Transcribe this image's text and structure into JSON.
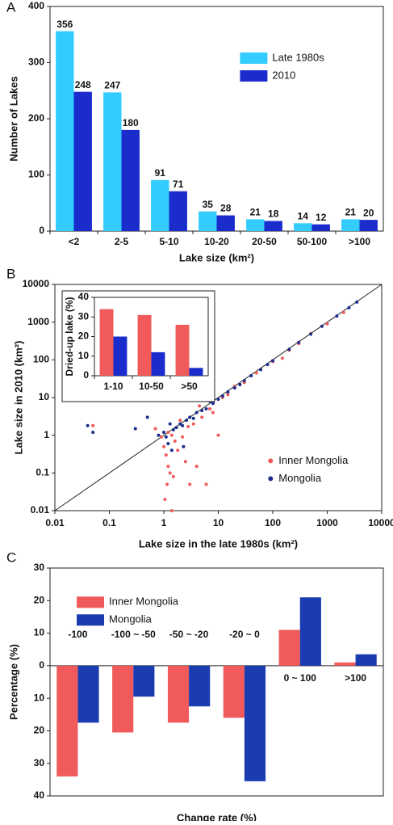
{
  "chart_data": [
    {
      "type": "bar",
      "panel": "A",
      "xlabel": "Lake size (km²)",
      "ylabel": "Number of Lakes",
      "categories": [
        "<2",
        "2-5",
        "5-10",
        "10-20",
        "20-50",
        "50-100",
        ">100"
      ],
      "series": [
        {
          "name": "Late 1980s",
          "color": "#33ccff",
          "values": [
            356,
            247,
            91,
            35,
            21,
            14,
            21
          ]
        },
        {
          "name": "2010",
          "color": "#1a2ccc",
          "values": [
            248,
            180,
            71,
            28,
            18,
            12,
            20
          ]
        }
      ],
      "ylim": [
        0,
        400
      ],
      "yticks": [
        0,
        100,
        200,
        300,
        400
      ],
      "data_labels": true,
      "legend": "upper right"
    },
    {
      "type": "scatter",
      "panel": "B",
      "xlabel": "Lake size in the late 1980s (km²)",
      "ylabel": "Lake size in 2010 (km²)",
      "xscale": "log",
      "yscale": "log",
      "xlim": [
        0.01,
        10000
      ],
      "ylim": [
        0.01,
        10000
      ],
      "xticks": [
        0.01,
        0.1,
        1,
        10,
        100,
        1000,
        10000
      ],
      "yticks": [
        0.01,
        0.1,
        1,
        10,
        100,
        1000,
        10000
      ],
      "legend": "lower right",
      "series": [
        {
          "name": "Inner Mongolia",
          "color": "#f05a5a",
          "x": [
            0.05,
            0.9,
            1.0,
            1.05,
            1.1,
            1.15,
            1.2,
            1.3,
            1.4,
            1.5,
            1.6,
            1.8,
            2,
            2.2,
            2.5,
            3,
            3.5,
            4,
            5,
            6,
            7,
            8,
            10,
            12,
            15,
            20,
            30,
            50,
            100,
            150,
            200,
            300,
            500,
            1000,
            2000,
            1.2,
            1.4,
            2.8,
            4.5,
            0.7
          ],
          "y": [
            1.8,
            0.9,
            0.5,
            0.02,
            0.3,
            0.05,
            0.15,
            0.1,
            1,
            0.08,
            0.7,
            0.4,
            2.5,
            0.9,
            0.2,
            0.05,
            2,
            0.15,
            3,
            0.05,
            5,
            4,
            1,
            10,
            12,
            20,
            25,
            45,
            90,
            110,
            180,
            270,
            500,
            900,
            1800,
            1.2,
            0.01,
            1.7,
            6,
            1.5
          ]
        },
        {
          "name": "Mongolia",
          "color": "#1a2c8c",
          "x": [
            0.04,
            0.05,
            0.3,
            0.5,
            0.8,
            1,
            1.1,
            1.2,
            1.3,
            1.5,
            1.7,
            2,
            2.3,
            2.6,
            3,
            3.5,
            4,
            5,
            6,
            7,
            8,
            10,
            12,
            15,
            20,
            25,
            30,
            40,
            60,
            80,
            100,
            200,
            300,
            500,
            800,
            1500,
            2500,
            3500,
            1.4,
            2.2
          ],
          "y": [
            1.8,
            1.2,
            1.5,
            3,
            1,
            1.2,
            0.9,
            0.6,
            2,
            1.4,
            1.6,
            2,
            0.5,
            2.5,
            3,
            2.8,
            4,
            4.5,
            5,
            8,
            7,
            9,
            11,
            14,
            18,
            22,
            28,
            38,
            55,
            75,
            95,
            190,
            290,
            480,
            780,
            1450,
            2400,
            3400,
            0.4,
            1.8
          ]
        }
      ]
    },
    {
      "type": "bar",
      "ylabel": "Dried-up lake (%)",
      "categories": [
        "1-10",
        "10-50",
        ">50"
      ],
      "series": [
        {
          "name": "Inner Mongolia",
          "color": "#f05a5a",
          "values": [
            34,
            31,
            26
          ]
        },
        {
          "name": "Mongolia",
          "color": "#1a2ccc",
          "values": [
            20,
            12,
            4
          ]
        }
      ],
      "ylim": [
        0,
        40
      ],
      "yticks": [
        0,
        10,
        20,
        30,
        40
      ]
    },
    {
      "type": "bar",
      "panel": "C",
      "xlabel": "Change rate (%)",
      "ylabel": "Percentage (%)",
      "categories": [
        "-100",
        "-100 ~ -50",
        "-50 ~ -20",
        "-20 ~ 0",
        "0 ~ 100",
        ">100"
      ],
      "series": [
        {
          "name": "Inner Mongolia",
          "color": "#f05a5a",
          "values": [
            -34,
            -20.5,
            -17.5,
            -16,
            11,
            1
          ]
        },
        {
          "name": "Mongolia",
          "color": "#1a3cb0",
          "values": [
            -17.5,
            -9.5,
            -12.5,
            -35.5,
            21,
            3.5
          ]
        }
      ],
      "ylim": [
        -40,
        30
      ],
      "yticks": [
        {
          "value": -40,
          "label": "40"
        },
        {
          "value": -30,
          "label": "30"
        },
        {
          "value": -20,
          "label": "20"
        },
        {
          "value": -10,
          "label": "10"
        },
        0,
        10,
        20,
        30
      ],
      "category_labels_at_zero": true,
      "legend": "upper left"
    }
  ]
}
